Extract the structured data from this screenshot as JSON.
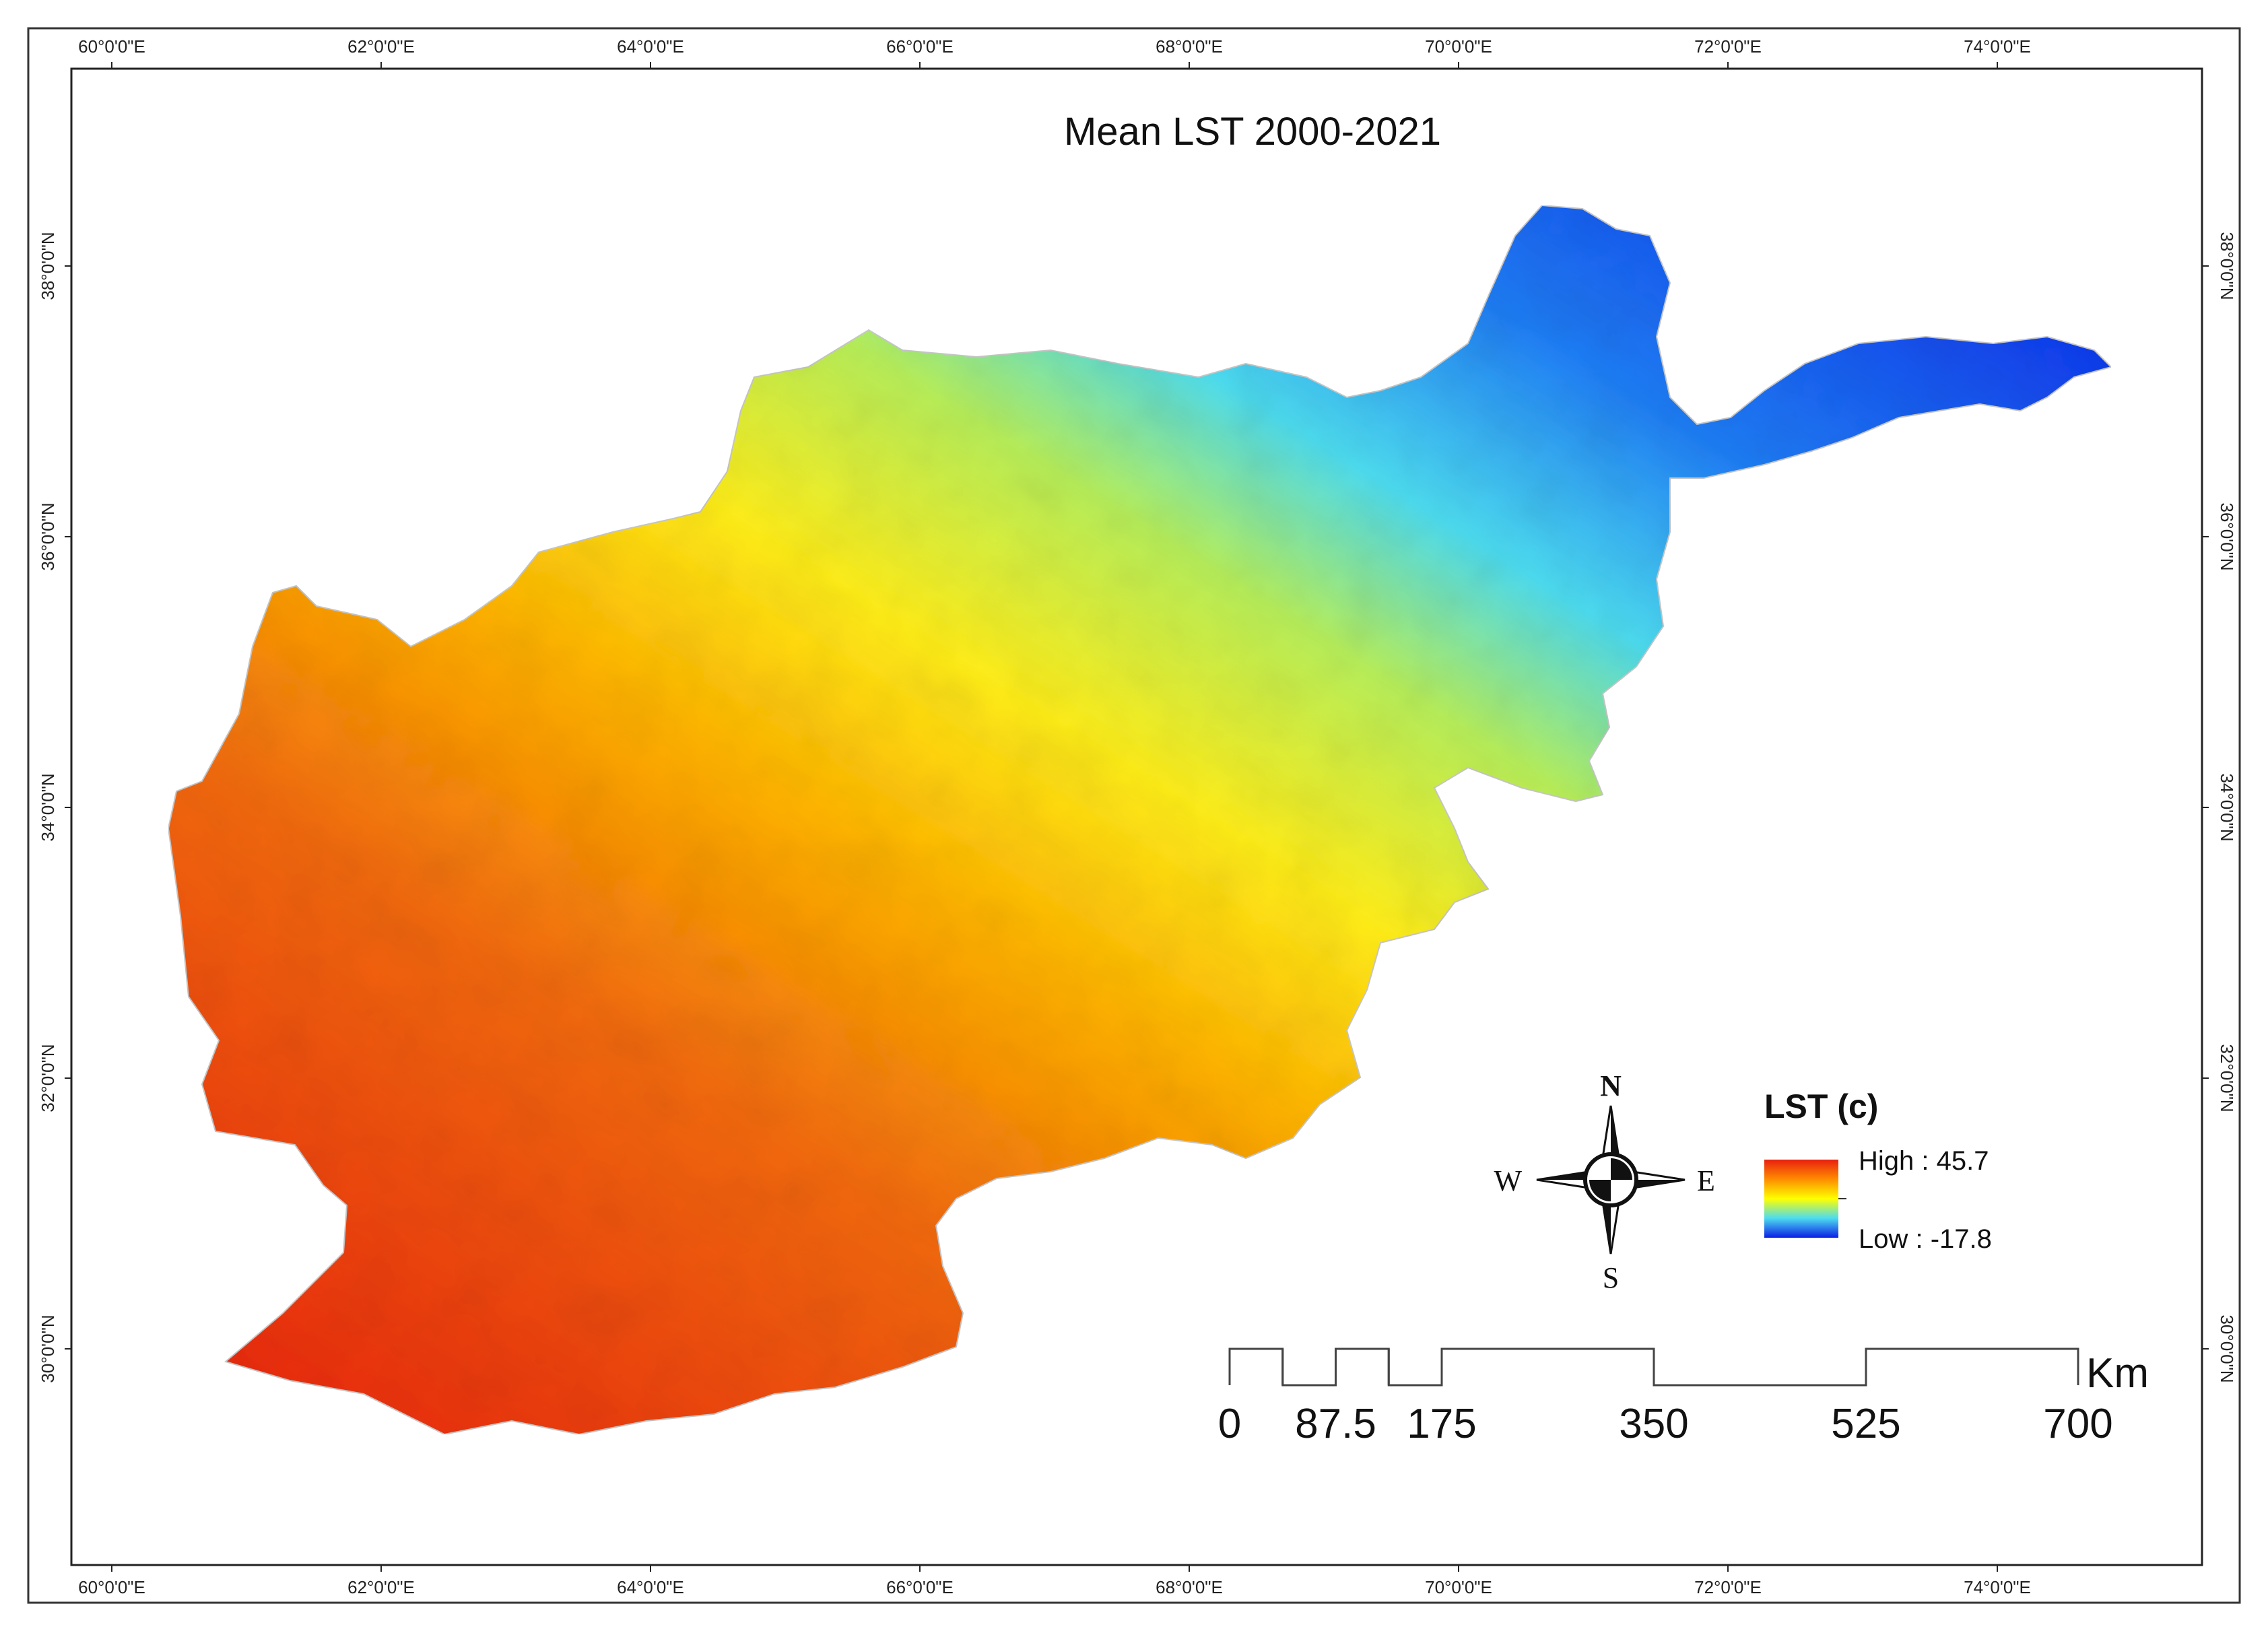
{
  "map": {
    "title": "Mean LST 2000-2021",
    "longitude_labels": [
      "60°0'0\"E",
      "62°0'0\"E",
      "64°0'0\"E",
      "66°0'0\"E",
      "68°0'0\"E",
      "70°0'0\"E",
      "72°0'0\"E",
      "74°0'0\"E"
    ],
    "latitude_labels": [
      "38°0'0\"N",
      "36°0'0\"N",
      "34°0'0\"N",
      "32°0'0\"N",
      "30°0'0\"N"
    ]
  },
  "legend": {
    "title": "LST (c)",
    "high_label": "High : 45.7",
    "low_label": "Low : -17.8",
    "high_value": 45.7,
    "low_value": -17.8,
    "colors": [
      "#e8200f",
      "#ff8c00",
      "#ffff00",
      "#4ddcf0",
      "#0a1ee6"
    ]
  },
  "compass": {
    "north": "N",
    "south": "S",
    "east": "E",
    "west": "W"
  },
  "scale_bar": {
    "unit": "Km",
    "labels": [
      "0",
      "87.5",
      "175",
      "350",
      "525",
      "700"
    ]
  }
}
